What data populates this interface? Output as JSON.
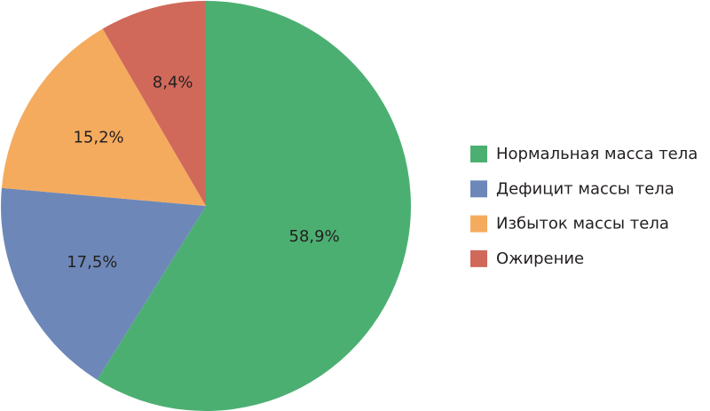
{
  "chart_data": {
    "type": "pie",
    "categories": [
      "Нормальная масса тела",
      "Дефицит массы тела",
      "Избыток массы тела",
      "Ожирение"
    ],
    "values": [
      58.9,
      17.5,
      15.2,
      8.4
    ],
    "value_labels": [
      "58,9%",
      "17,5%",
      "15,2%",
      "8,4%"
    ],
    "colors": [
      "#4caf72",
      "#6d88b8",
      "#f5ab5e",
      "#d0695a"
    ],
    "legend": "right"
  }
}
